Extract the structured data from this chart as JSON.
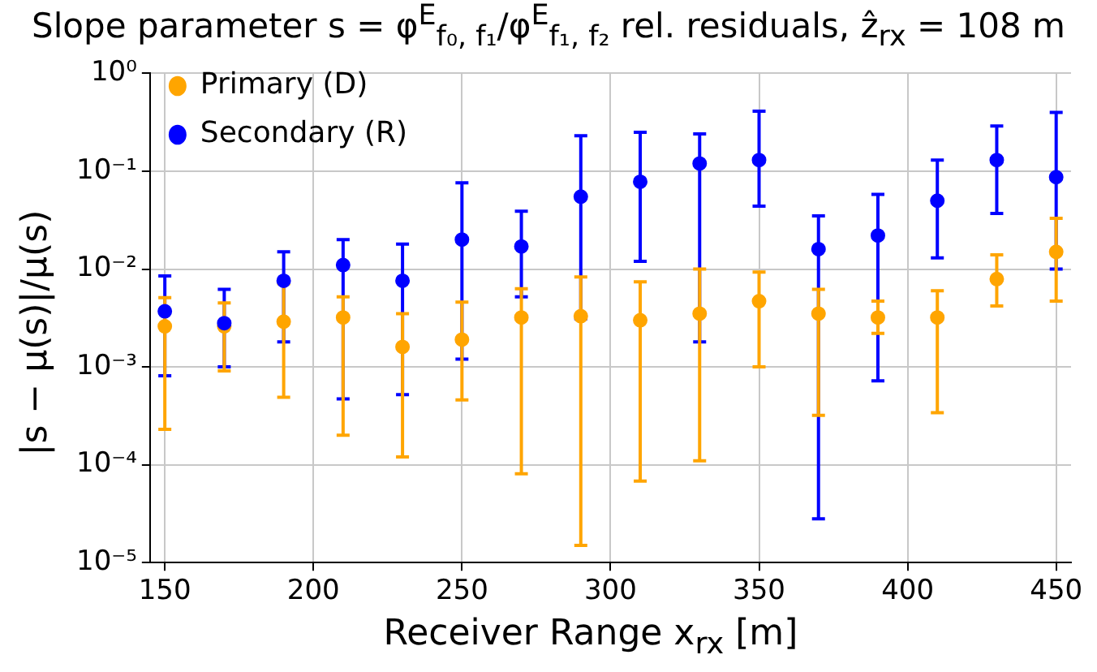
{
  "chart_data": {
    "type": "scatter",
    "title": "Slope parameter s = φ$^{E}$$_{f₀, f₁}$/φ$^{E}$$_{f₁, f₂}$ rel. residuals, ẑ$_{rx}$ = 108 m",
    "xlabel": "Receiver Range x$_{rx}$ [m]",
    "ylabel": "|s − μ(s)|/μ(s)",
    "x": [
      150,
      170,
      190,
      210,
      230,
      250,
      270,
      290,
      310,
      330,
      350,
      370,
      390,
      410,
      430,
      450
    ],
    "series": [
      {
        "name": "Primary (D)",
        "color": "#ffa500",
        "values": [
          0.0026,
          0.0026,
          0.0029,
          0.0032,
          0.0016,
          0.0019,
          0.0032,
          0.0033,
          0.003,
          0.0035,
          0.0047,
          0.0035,
          0.0032,
          0.0032,
          0.0079,
          0.015
        ],
        "errors": [
          [
            0.00023,
            0.0051
          ],
          [
            0.00091,
            0.0045
          ],
          [
            0.00049,
            0.0071
          ],
          [
            0.0002,
            0.0052
          ],
          [
            0.00012,
            0.0035
          ],
          [
            0.00046,
            0.0046
          ],
          [
            8.1e-05,
            0.0063
          ],
          [
            1.5e-05,
            0.0083
          ],
          [
            6.8e-05,
            0.0074
          ],
          [
            0.00011,
            0.01
          ],
          [
            0.001,
            0.0093
          ],
          [
            0.00032,
            0.0062
          ],
          [
            0.0022,
            0.0047
          ],
          [
            0.00034,
            0.006
          ],
          [
            0.0042,
            0.014
          ],
          [
            0.0047,
            0.033
          ]
        ]
      },
      {
        "name": "Secondary (R)",
        "color": "#0000ff",
        "values": [
          0.0037,
          0.0028,
          0.0076,
          0.011,
          0.0076,
          0.02,
          0.017,
          0.055,
          0.078,
          0.12,
          0.13,
          0.016,
          0.022,
          0.05,
          0.13,
          0.087
        ],
        "errors": [
          [
            0.00081,
            0.0085
          ],
          [
            0.001,
            0.0062
          ],
          [
            0.0018,
            0.015
          ],
          [
            0.00047,
            0.02
          ],
          [
            0.00052,
            0.018
          ],
          [
            0.0012,
            0.076
          ],
          [
            0.0052,
            0.039
          ],
          [
            0.0031,
            0.23
          ],
          [
            0.012,
            0.25
          ],
          [
            0.0018,
            0.24
          ],
          [
            0.044,
            0.41
          ],
          [
            2.8e-05,
            0.035
          ],
          [
            0.00072,
            0.058
          ],
          [
            0.013,
            0.13
          ],
          [
            0.037,
            0.29
          ],
          [
            0.01,
            0.4
          ]
        ]
      }
    ],
    "xlim": [
      145,
      455
    ],
    "xticks": [
      150,
      200,
      250,
      300,
      350,
      400,
      450
    ],
    "ylim": [
      1e-05,
      1
    ],
    "yticks": [
      {
        "value": 1e-05,
        "label": "10⁻⁵"
      },
      {
        "value": 0.0001,
        "label": "10⁻⁴"
      },
      {
        "value": 0.001,
        "label": "10⁻³"
      },
      {
        "value": 0.01,
        "label": "10⁻²"
      },
      {
        "value": 0.1,
        "label": "10⁻¹"
      },
      {
        "value": 1,
        "label": "10⁰"
      }
    ],
    "log": "y",
    "grid": true,
    "legend": "top left",
    "marker": "circle"
  }
}
